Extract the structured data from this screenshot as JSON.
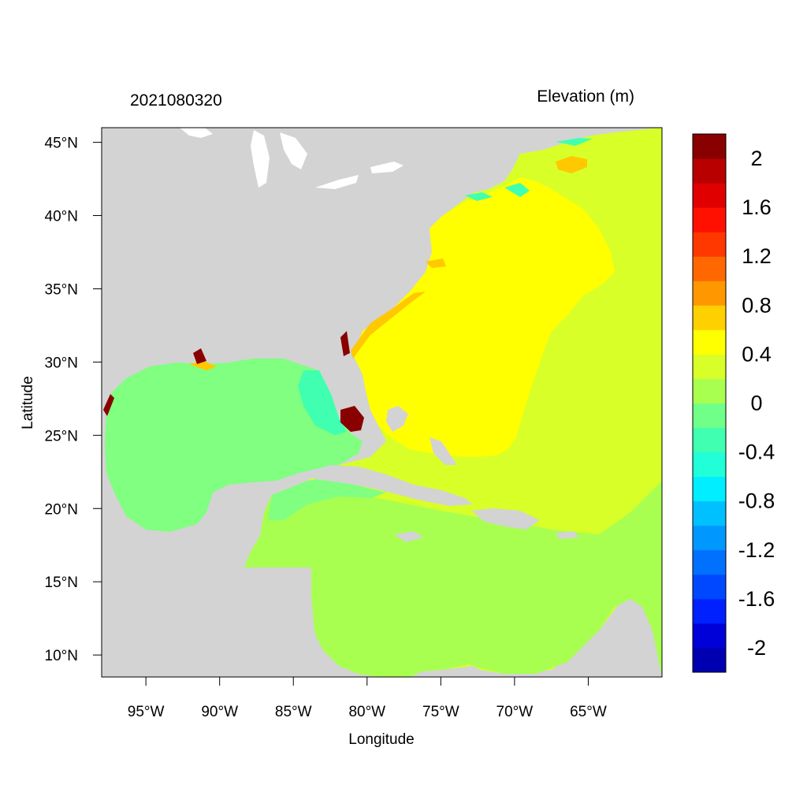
{
  "header": {
    "timestamp": "2021080320",
    "variable": "Elevation (m)"
  },
  "axes": {
    "xlabel": "Longitude",
    "ylabel": "Latitude",
    "lon_range": [
      -98,
      -60
    ],
    "lat_range": [
      8.5,
      46
    ],
    "x_ticks": [
      {
        "value": -95,
        "label": "95°W"
      },
      {
        "value": -90,
        "label": "90°W"
      },
      {
        "value": -85,
        "label": "85°W"
      },
      {
        "value": -80,
        "label": "80°W"
      },
      {
        "value": -75,
        "label": "75°W"
      },
      {
        "value": -70,
        "label": "70°W"
      },
      {
        "value": -65,
        "label": "65°W"
      }
    ],
    "y_ticks": [
      {
        "value": 45,
        "label": "45°N"
      },
      {
        "value": 40,
        "label": "40°N"
      },
      {
        "value": 35,
        "label": "35°N"
      },
      {
        "value": 30,
        "label": "30°N"
      },
      {
        "value": 25,
        "label": "25°N"
      },
      {
        "value": 20,
        "label": "20°N"
      },
      {
        "value": 15,
        "label": "15°N"
      },
      {
        "value": 10,
        "label": "10°N"
      }
    ]
  },
  "colorbar": {
    "min": -2.2,
    "max": 2.2,
    "colors": [
      "#0000b0",
      "#0000d8",
      "#0020ff",
      "#0048ff",
      "#0070ff",
      "#0098ff",
      "#00c0ff",
      "#00eeff",
      "#20ffd8",
      "#40ffb0",
      "#70ff88",
      "#a8ff50",
      "#d8ff28",
      "#ffff00",
      "#ffd000",
      "#ff9800",
      "#ff6800",
      "#ff3800",
      "#ff1000",
      "#e00000",
      "#b80000",
      "#880000"
    ],
    "labels": [
      "2",
      "1.6",
      "1.2",
      "0.8",
      "0.4",
      "0",
      "-0.4",
      "-0.8",
      "-1.2",
      "-1.6",
      "-2"
    ],
    "label_values": [
      2,
      1.6,
      1.2,
      0.8,
      0.4,
      0,
      -0.4,
      -0.8,
      -1.2,
      -1.6,
      -2
    ]
  },
  "map_colors": {
    "land": "#d3d3d3",
    "lakes": "#ffffff",
    "gulf": "#80ff80",
    "caribbean": "#a8ff50",
    "atlantic_outer": "#d8ff28",
    "atlantic_core": "#ffff00",
    "coastal_surge": "#ffc800",
    "surge_peak": "#880000",
    "shelf_neg": "#40ffb0"
  }
}
